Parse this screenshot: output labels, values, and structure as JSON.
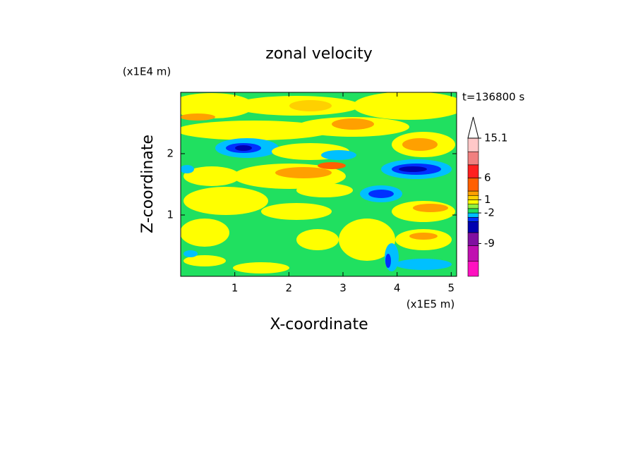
{
  "chart_data": {
    "type": "contour",
    "title": "zonal velocity",
    "x_label": "X-coordinate",
    "y_label": "Z-coordinate",
    "x_unit": "(x1E5 m)",
    "y_unit": "(x1E4 m)",
    "annotation": "t=136800 s",
    "xlim": [
      0,
      5.1
    ],
    "ylim": [
      0,
      3
    ],
    "xticks": [
      1,
      2,
      3,
      4,
      5
    ],
    "yticks": [
      1,
      2
    ],
    "colorbar": {
      "levels": [
        -16.5,
        -13,
        -9.5,
        -6.5,
        -4,
        -3,
        -2,
        -1,
        0,
        1,
        2,
        3,
        6,
        9,
        12,
        15.1
      ],
      "colors": [
        "#ff10c0",
        "#c010b0",
        "#8010a0",
        "#0000b0",
        "#0030ff",
        "#00c0ff",
        "#20e060",
        "#90f040",
        "#ffff00",
        "#ffd000",
        "#ffa000",
        "#ff6000",
        "#ff2020",
        "#f08080",
        "#ffc8c8"
      ],
      "ticks": [
        15.1,
        6,
        1,
        -2,
        -9
      ]
    }
  }
}
